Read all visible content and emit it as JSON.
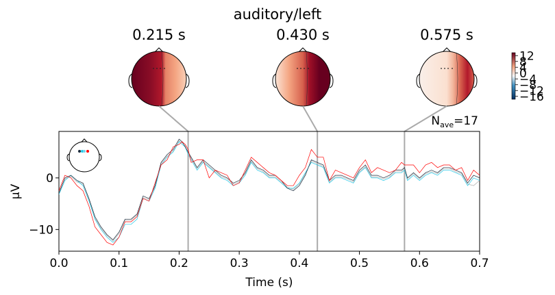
{
  "chart_data": {
    "type": "line",
    "title": "auditory/left",
    "xlabel": "Time (s)",
    "ylabel": "µV",
    "xlim": [
      0.0,
      0.7
    ],
    "ylim": [
      -14.2,
      9
    ],
    "xticks": [
      0.0,
      0.1,
      0.2,
      0.3,
      0.4,
      0.5,
      0.6,
      0.7
    ],
    "xtick_labels": [
      "0.0",
      "0.1",
      "0.2",
      "0.3",
      "0.4",
      "0.5",
      "0.6",
      "0.7"
    ],
    "yticks": [
      -10,
      0
    ],
    "ytick_labels": [
      "−10",
      "0"
    ],
    "nave_label": "N",
    "nave_sub": "ave",
    "nave_value": "=17",
    "topomap_times": [
      0.215,
      0.43,
      0.575
    ],
    "topomap_labels": [
      "0.215 s",
      "0.430 s",
      "0.575 s"
    ],
    "colorbar_ticks": [
      12,
      8,
      4,
      0,
      -4,
      -8,
      -12,
      -16
    ],
    "colorbar_tick_labels": [
      "12",
      "8",
      "4",
      "0",
      "−4",
      "−8",
      "−12",
      "−16"
    ],
    "colors": {
      "red_series": "#ff0000",
      "dark_series": "#1a2b3c",
      "cyan_series": "#22c8e8",
      "gray_series": "#b0b0b0",
      "marker_lines": "#aaaaaa",
      "topo_dark_red": "#67001f",
      "topo_red": "#c0262b",
      "topo_light": "#f7f7f7",
      "topo_salmon": "#f4a582"
    },
    "grid": false,
    "series": [
      {
        "color": "#ff0000",
        "x": [
          0.0,
          0.01,
          0.02,
          0.03,
          0.04,
          0.05,
          0.06,
          0.07,
          0.08,
          0.09,
          0.1,
          0.11,
          0.12,
          0.13,
          0.14,
          0.15,
          0.16,
          0.17,
          0.18,
          0.19,
          0.2,
          0.205,
          0.21,
          0.215,
          0.22,
          0.23,
          0.24,
          0.25,
          0.26,
          0.27,
          0.28,
          0.29,
          0.3,
          0.31,
          0.32,
          0.33,
          0.34,
          0.35,
          0.36,
          0.37,
          0.38,
          0.39,
          0.4,
          0.41,
          0.42,
          0.43,
          0.44,
          0.45,
          0.46,
          0.47,
          0.48,
          0.49,
          0.5,
          0.51,
          0.52,
          0.53,
          0.54,
          0.55,
          0.56,
          0.57,
          0.575,
          0.58,
          0.59,
          0.6,
          0.61,
          0.62,
          0.63,
          0.64,
          0.65,
          0.66,
          0.67,
          0.68,
          0.69,
          0.7
        ],
        "y": [
          -2.5,
          0.5,
          0.0,
          -1.5,
          -2.5,
          -5.5,
          -9.5,
          -11.0,
          -12.5,
          -13.0,
          -11.5,
          -8.5,
          -8.5,
          -7.5,
          -4.0,
          -4.5,
          -1.0,
          2.5,
          3.5,
          6.0,
          6.5,
          7.0,
          6.5,
          5.5,
          3.0,
          3.5,
          3.5,
          0.0,
          1.5,
          1.0,
          0.5,
          -1.5,
          -1.0,
          1.5,
          4.0,
          3.0,
          2.0,
          1.0,
          0.5,
          -0.5,
          -1.5,
          -1.5,
          0.5,
          2.0,
          5.5,
          4.0,
          4.0,
          -0.5,
          1.5,
          1.0,
          0.5,
          0.0,
          2.0,
          3.5,
          1.0,
          2.0,
          1.5,
          1.0,
          1.5,
          3.0,
          2.5,
          2.5,
          2.5,
          1.0,
          2.5,
          3.0,
          2.0,
          2.5,
          2.5,
          1.5,
          2.0,
          -0.5,
          1.5,
          0.5
        ]
      },
      {
        "color": "#1a2b3c",
        "x": [
          0.0,
          0.01,
          0.02,
          0.03,
          0.04,
          0.05,
          0.06,
          0.07,
          0.08,
          0.09,
          0.1,
          0.11,
          0.12,
          0.13,
          0.14,
          0.15,
          0.16,
          0.17,
          0.18,
          0.19,
          0.2,
          0.205,
          0.21,
          0.215,
          0.22,
          0.23,
          0.24,
          0.25,
          0.26,
          0.27,
          0.28,
          0.29,
          0.3,
          0.31,
          0.32,
          0.33,
          0.34,
          0.35,
          0.36,
          0.37,
          0.38,
          0.39,
          0.4,
          0.41,
          0.42,
          0.43,
          0.44,
          0.45,
          0.46,
          0.47,
          0.48,
          0.49,
          0.5,
          0.51,
          0.52,
          0.53,
          0.54,
          0.55,
          0.56,
          0.57,
          0.575,
          0.58,
          0.59,
          0.6,
          0.61,
          0.62,
          0.63,
          0.64,
          0.65,
          0.66,
          0.67,
          0.68,
          0.69,
          0.7
        ],
        "y": [
          -3.0,
          0.0,
          0.5,
          -0.5,
          -1.0,
          -4.0,
          -7.5,
          -9.5,
          -11.0,
          -12.0,
          -10.5,
          -8.0,
          -8.0,
          -7.0,
          -3.5,
          -4.0,
          -1.5,
          3.0,
          4.5,
          5.5,
          7.5,
          7.0,
          6.0,
          5.0,
          4.0,
          2.0,
          3.5,
          2.5,
          1.5,
          0.5,
          0.0,
          -1.0,
          -0.5,
          1.0,
          3.5,
          2.0,
          1.5,
          0.5,
          0.5,
          -0.5,
          -2.0,
          -2.5,
          -1.5,
          0.5,
          3.5,
          3.0,
          2.5,
          -0.5,
          0.5,
          0.5,
          0.0,
          -0.5,
          1.5,
          2.5,
          0.5,
          0.5,
          0.0,
          0.5,
          1.5,
          1.5,
          2.0,
          0.0,
          1.0,
          0.0,
          1.0,
          1.5,
          1.0,
          2.0,
          2.0,
          1.5,
          1.0,
          -1.0,
          0.5,
          0.0
        ]
      },
      {
        "color": "#22c8e8",
        "x": [
          0.0,
          0.01,
          0.02,
          0.03,
          0.04,
          0.05,
          0.06,
          0.07,
          0.08,
          0.09,
          0.1,
          0.11,
          0.12,
          0.13,
          0.14,
          0.15,
          0.16,
          0.17,
          0.18,
          0.19,
          0.2,
          0.205,
          0.21,
          0.215,
          0.22,
          0.23,
          0.24,
          0.25,
          0.26,
          0.27,
          0.28,
          0.29,
          0.3,
          0.31,
          0.32,
          0.33,
          0.34,
          0.35,
          0.36,
          0.37,
          0.38,
          0.39,
          0.4,
          0.41,
          0.42,
          0.43,
          0.44,
          0.45,
          0.46,
          0.47,
          0.48,
          0.49,
          0.5,
          0.51,
          0.52,
          0.53,
          0.54,
          0.55,
          0.56,
          0.57,
          0.575,
          0.58,
          0.59,
          0.6,
          0.61,
          0.62,
          0.63,
          0.64,
          0.65,
          0.66,
          0.67,
          0.68,
          0.69,
          0.7
        ],
        "y": [
          -3.2,
          -0.5,
          0.5,
          -0.5,
          -1.5,
          -4.5,
          -8.0,
          -10.0,
          -11.5,
          -12.5,
          -11.5,
          -9.0,
          -9.0,
          -8.0,
          -4.0,
          -4.5,
          -2.0,
          2.5,
          4.0,
          5.0,
          7.0,
          6.5,
          6.0,
          4.5,
          3.5,
          1.5,
          3.0,
          2.0,
          1.0,
          0.0,
          -0.5,
          -1.5,
          -1.0,
          0.5,
          3.0,
          1.5,
          1.0,
          0.0,
          0.0,
          -1.0,
          -2.0,
          -2.0,
          -1.0,
          1.0,
          3.0,
          2.5,
          2.0,
          -1.0,
          0.0,
          0.0,
          -0.5,
          -1.0,
          1.0,
          2.0,
          0.0,
          0.0,
          -0.5,
          0.0,
          1.0,
          1.0,
          1.5,
          -0.5,
          0.5,
          -0.5,
          0.5,
          1.0,
          0.5,
          1.5,
          1.5,
          1.0,
          0.5,
          -1.5,
          0.0,
          -0.5
        ]
      },
      {
        "color": "#b0b0b0",
        "x": [
          0.0,
          0.01,
          0.02,
          0.03,
          0.04,
          0.05,
          0.06,
          0.07,
          0.08,
          0.09,
          0.1,
          0.11,
          0.12,
          0.13,
          0.14,
          0.15,
          0.16,
          0.17,
          0.18,
          0.19,
          0.2,
          0.205,
          0.21,
          0.215,
          0.22,
          0.23,
          0.24,
          0.25,
          0.26,
          0.27,
          0.28,
          0.29,
          0.3,
          0.31,
          0.32,
          0.33,
          0.34,
          0.35,
          0.36,
          0.37,
          0.38,
          0.39,
          0.4,
          0.41,
          0.42,
          0.43,
          0.44,
          0.45,
          0.46,
          0.47,
          0.48,
          0.49,
          0.5,
          0.51,
          0.52,
          0.53,
          0.54,
          0.55,
          0.56,
          0.57,
          0.575,
          0.58,
          0.59,
          0.6,
          0.61,
          0.62,
          0.63,
          0.64,
          0.65,
          0.66,
          0.67,
          0.68,
          0.69,
          0.7
        ],
        "y": [
          -2.8,
          -0.2,
          0.3,
          -0.8,
          -1.2,
          -4.2,
          -7.8,
          -9.8,
          -11.2,
          -12.2,
          -10.8,
          -8.2,
          -8.2,
          -7.2,
          -3.8,
          -4.2,
          -1.8,
          2.8,
          4.2,
          5.2,
          7.2,
          6.8,
          6.2,
          4.8,
          3.8,
          1.8,
          3.2,
          2.2,
          1.2,
          0.2,
          -0.2,
          -1.2,
          -0.8,
          0.8,
          3.2,
          1.8,
          1.2,
          0.2,
          0.2,
          -0.8,
          -1.8,
          -2.2,
          -1.2,
          0.8,
          3.2,
          2.8,
          2.2,
          -0.8,
          0.2,
          0.2,
          -0.2,
          -0.8,
          1.2,
          2.2,
          0.2,
          0.2,
          -0.2,
          0.2,
          1.2,
          1.2,
          1.8,
          -0.2,
          0.8,
          -0.2,
          0.8,
          1.2,
          0.8,
          1.8,
          1.8,
          1.2,
          0.8,
          -1.2,
          -1.5,
          -0.5
        ]
      }
    ]
  }
}
